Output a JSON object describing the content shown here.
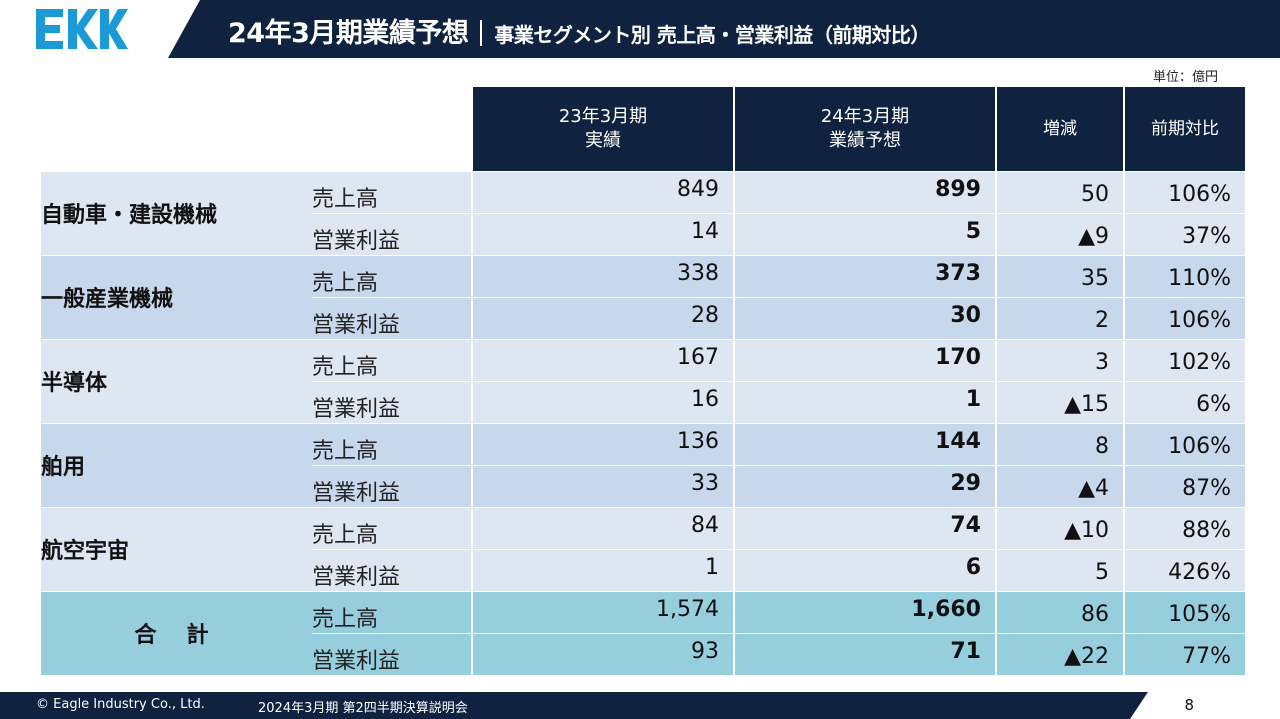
{
  "header": {
    "logo_text": "EKK",
    "title_main": "24年3月期業績予想",
    "title_sub": "事業セグメント別 売上高・営業利益（前期対比）"
  },
  "unit_label": "単位：億円",
  "table": {
    "columns": [
      {
        "line1": "23年3月期",
        "line2": "実績"
      },
      {
        "line1": "24年3月期",
        "line2": "業績予想"
      },
      {
        "line1": "増減",
        "line2": ""
      },
      {
        "line1": "前期対比",
        "line2": ""
      }
    ],
    "segments": [
      {
        "name": "自動車・建設機械",
        "rows": [
          {
            "label": "売上高",
            "prev": "849",
            "forecast": "899",
            "diff": "50",
            "yoy": "106%"
          },
          {
            "label": "営業利益",
            "prev": "14",
            "forecast": "5",
            "diff": "▲9",
            "yoy": "37%"
          }
        ]
      },
      {
        "name": "一般産業機械",
        "rows": [
          {
            "label": "売上高",
            "prev": "338",
            "forecast": "373",
            "diff": "35",
            "yoy": "110%"
          },
          {
            "label": "営業利益",
            "prev": "28",
            "forecast": "30",
            "diff": "2",
            "yoy": "106%"
          }
        ]
      },
      {
        "name": "半導体",
        "rows": [
          {
            "label": "売上高",
            "prev": "167",
            "forecast": "170",
            "diff": "3",
            "yoy": "102%"
          },
          {
            "label": "営業利益",
            "prev": "16",
            "forecast": "1",
            "diff": "▲15",
            "yoy": "6%"
          }
        ]
      },
      {
        "name": "舶用",
        "rows": [
          {
            "label": "売上高",
            "prev": "136",
            "forecast": "144",
            "diff": "8",
            "yoy": "106%"
          },
          {
            "label": "営業利益",
            "prev": "33",
            "forecast": "29",
            "diff": "▲4",
            "yoy": "87%"
          }
        ]
      },
      {
        "name": "航空宇宙",
        "rows": [
          {
            "label": "売上高",
            "prev": "84",
            "forecast": "74",
            "diff": "▲10",
            "yoy": "88%"
          },
          {
            "label": "営業利益",
            "prev": "1",
            "forecast": "6",
            "diff": "5",
            "yoy": "426%"
          }
        ]
      },
      {
        "name": "合計",
        "rows": [
          {
            "label": "売上高",
            "prev": "1,574",
            "forecast": "1,660",
            "diff": "86",
            "yoy": "105%"
          },
          {
            "label": "営業利益",
            "prev": "93",
            "forecast": "71",
            "diff": "▲22",
            "yoy": "77%"
          }
        ]
      }
    ]
  },
  "footer": {
    "copyright": "© Eagle Industry Co., Ltd.",
    "meeting": "2024年3月期 第2四半期決算説明会",
    "page": "8"
  },
  "colors": {
    "navy": "#0f2340",
    "row_light": "#dde6f1",
    "row_mid": "#c7d8ed",
    "row_total": "#97cede",
    "logo_blue": "#1b9ad6"
  }
}
